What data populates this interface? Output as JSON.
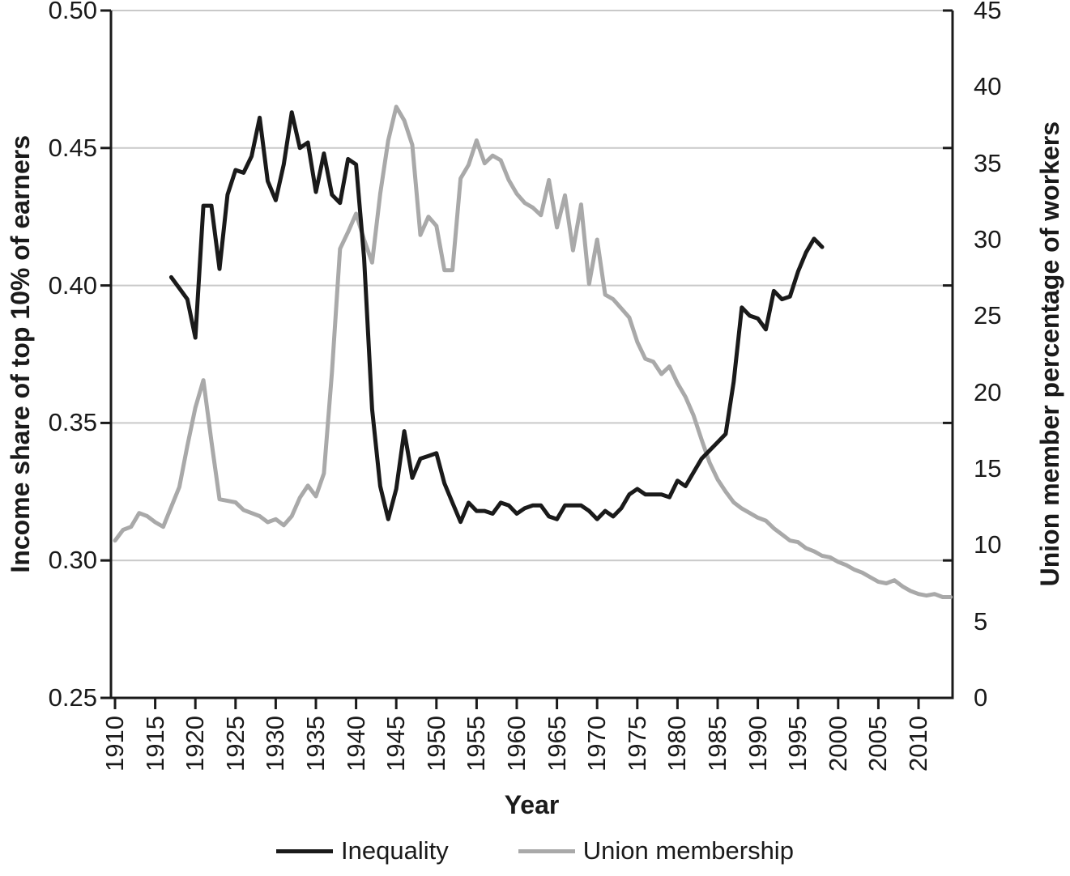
{
  "chart_data": {
    "type": "line",
    "title": "",
    "x_axis": {
      "label": "Year",
      "tick_years": [
        1910,
        1915,
        1920,
        1925,
        1930,
        1935,
        1940,
        1945,
        1950,
        1955,
        1960,
        1965,
        1970,
        1975,
        1980,
        1985,
        1990,
        1995,
        2000,
        2005,
        2010
      ],
      "range": [
        1909.5,
        2014.2
      ]
    },
    "left_axis": {
      "label": "Income share of top 10% of earners",
      "tick_labels": [
        "0.50",
        "0.45",
        "0.40",
        "0.35",
        "0.30",
        "0.25"
      ],
      "tick_values": [
        0.5,
        0.45,
        0.4,
        0.35,
        0.3,
        0.25
      ],
      "range": [
        0.25,
        0.5
      ]
    },
    "right_axis": {
      "label": "Union member percentage of workers",
      "tick_labels": [
        "45",
        "40",
        "35",
        "30",
        "25",
        "20",
        "15",
        "10",
        "5",
        "0"
      ],
      "tick_values": [
        45,
        40,
        35,
        30,
        25,
        20,
        15,
        10,
        5,
        0
      ],
      "range": [
        0,
        45
      ],
      "axis_tick_marks_at": [
        45,
        36,
        27,
        18,
        9,
        0
      ]
    },
    "grid": {
      "left_values": [
        0.5,
        0.45,
        0.4,
        0.35,
        0.3
      ],
      "color": "#c9c9c9"
    },
    "legend": {
      "position": "bottom"
    },
    "series": [
      {
        "name": "Inequality",
        "color": "#1a1a1a",
        "axis": "left",
        "start_year": 1917,
        "values": [
          0.403,
          0.399,
          0.395,
          0.381,
          0.429,
          0.429,
          0.406,
          0.433,
          0.442,
          0.441,
          0.447,
          0.461,
          0.438,
          0.431,
          0.444,
          0.463,
          0.45,
          0.452,
          0.434,
          0.448,
          0.433,
          0.43,
          0.446,
          0.444,
          0.41,
          0.355,
          0.327,
          0.315,
          0.326,
          0.347,
          0.33,
          0.337,
          0.338,
          0.339,
          0.328,
          0.321,
          0.314,
          0.321,
          0.318,
          0.318,
          0.317,
          0.321,
          0.32,
          0.317,
          0.319,
          0.32,
          0.32,
          0.316,
          0.315,
          0.32,
          0.32,
          0.32,
          0.318,
          0.315,
          0.318,
          0.316,
          0.319,
          0.324,
          0.326,
          0.324,
          0.324,
          0.324,
          0.323,
          0.329,
          0.327,
          0.332,
          0.337,
          0.34,
          0.343,
          0.346,
          0.365,
          0.392,
          0.389,
          0.388,
          0.384,
          0.398,
          0.395,
          0.396,
          0.405,
          0.412,
          0.417,
          0.414
        ]
      },
      {
        "name": "Union membership",
        "color": "#a9a9a9",
        "axis": "right",
        "start_year": 1910,
        "values": [
          10.3,
          11.0,
          11.2,
          12.1,
          11.9,
          11.5,
          11.2,
          12.5,
          13.8,
          16.5,
          19.0,
          20.8,
          16.8,
          13.0,
          12.9,
          12.8,
          12.3,
          12.1,
          11.9,
          11.5,
          11.7,
          11.3,
          11.9,
          13.1,
          13.9,
          13.2,
          14.7,
          21.3,
          29.4,
          30.5,
          31.7,
          30.0,
          28.5,
          33.0,
          36.5,
          38.7,
          37.8,
          36.2,
          30.3,
          31.5,
          30.9,
          28.0,
          28.0,
          34.0,
          34.9,
          36.5,
          35.0,
          35.5,
          35.2,
          33.9,
          33.0,
          32.4,
          32.1,
          31.6,
          33.9,
          30.8,
          32.9,
          29.3,
          32.3,
          27.1,
          30.0,
          26.4,
          26.1,
          25.5,
          24.9,
          23.3,
          22.2,
          22.0,
          21.2,
          21.7,
          20.6,
          19.7,
          18.5,
          16.9,
          15.4,
          14.3,
          13.5,
          12.8,
          12.4,
          12.1,
          11.8,
          11.6,
          11.1,
          10.7,
          10.3,
          10.2,
          9.8,
          9.6,
          9.3,
          9.2,
          8.9,
          8.7,
          8.4,
          8.2,
          7.9,
          7.6,
          7.5,
          7.7,
          7.3,
          7.0,
          6.8,
          6.7,
          6.8,
          6.6,
          6.6
        ]
      }
    ],
    "style": {
      "axis_color": "#1a1a1a",
      "background": "#ffffff"
    }
  }
}
